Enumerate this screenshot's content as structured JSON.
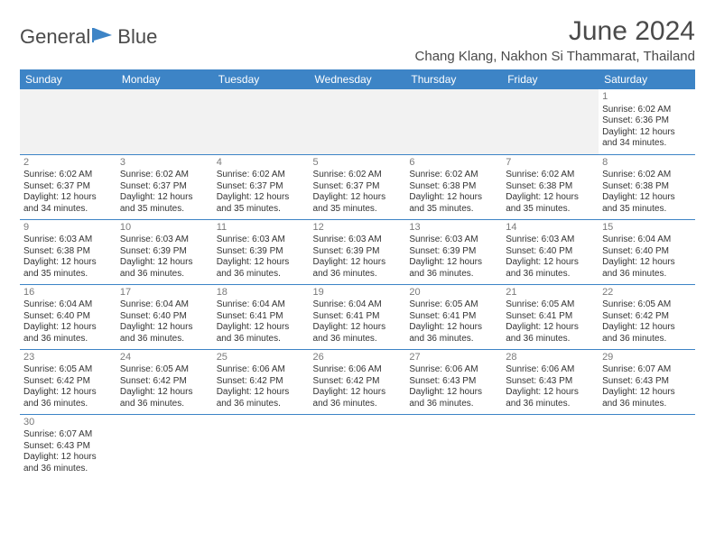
{
  "logo": {
    "text1": "General",
    "text2": "Blue",
    "icon_color": "#3d84c6"
  },
  "title": "June 2024",
  "location": "Chang Klang, Nakhon Si Thammarat, Thailand",
  "header_bg": "#3d84c6",
  "day_headers": [
    "Sunday",
    "Monday",
    "Tuesday",
    "Wednesday",
    "Thursday",
    "Friday",
    "Saturday"
  ],
  "weeks": [
    [
      null,
      null,
      null,
      null,
      null,
      null,
      {
        "n": "1",
        "sr": "6:02 AM",
        "ss": "6:36 PM",
        "dl": "12 hours and 34 minutes."
      }
    ],
    [
      {
        "n": "2",
        "sr": "6:02 AM",
        "ss": "6:37 PM",
        "dl": "12 hours and 34 minutes."
      },
      {
        "n": "3",
        "sr": "6:02 AM",
        "ss": "6:37 PM",
        "dl": "12 hours and 35 minutes."
      },
      {
        "n": "4",
        "sr": "6:02 AM",
        "ss": "6:37 PM",
        "dl": "12 hours and 35 minutes."
      },
      {
        "n": "5",
        "sr": "6:02 AM",
        "ss": "6:37 PM",
        "dl": "12 hours and 35 minutes."
      },
      {
        "n": "6",
        "sr": "6:02 AM",
        "ss": "6:38 PM",
        "dl": "12 hours and 35 minutes."
      },
      {
        "n": "7",
        "sr": "6:02 AM",
        "ss": "6:38 PM",
        "dl": "12 hours and 35 minutes."
      },
      {
        "n": "8",
        "sr": "6:02 AM",
        "ss": "6:38 PM",
        "dl": "12 hours and 35 minutes."
      }
    ],
    [
      {
        "n": "9",
        "sr": "6:03 AM",
        "ss": "6:38 PM",
        "dl": "12 hours and 35 minutes."
      },
      {
        "n": "10",
        "sr": "6:03 AM",
        "ss": "6:39 PM",
        "dl": "12 hours and 36 minutes."
      },
      {
        "n": "11",
        "sr": "6:03 AM",
        "ss": "6:39 PM",
        "dl": "12 hours and 36 minutes."
      },
      {
        "n": "12",
        "sr": "6:03 AM",
        "ss": "6:39 PM",
        "dl": "12 hours and 36 minutes."
      },
      {
        "n": "13",
        "sr": "6:03 AM",
        "ss": "6:39 PM",
        "dl": "12 hours and 36 minutes."
      },
      {
        "n": "14",
        "sr": "6:03 AM",
        "ss": "6:40 PM",
        "dl": "12 hours and 36 minutes."
      },
      {
        "n": "15",
        "sr": "6:04 AM",
        "ss": "6:40 PM",
        "dl": "12 hours and 36 minutes."
      }
    ],
    [
      {
        "n": "16",
        "sr": "6:04 AM",
        "ss": "6:40 PM",
        "dl": "12 hours and 36 minutes."
      },
      {
        "n": "17",
        "sr": "6:04 AM",
        "ss": "6:40 PM",
        "dl": "12 hours and 36 minutes."
      },
      {
        "n": "18",
        "sr": "6:04 AM",
        "ss": "6:41 PM",
        "dl": "12 hours and 36 minutes."
      },
      {
        "n": "19",
        "sr": "6:04 AM",
        "ss": "6:41 PM",
        "dl": "12 hours and 36 minutes."
      },
      {
        "n": "20",
        "sr": "6:05 AM",
        "ss": "6:41 PM",
        "dl": "12 hours and 36 minutes."
      },
      {
        "n": "21",
        "sr": "6:05 AM",
        "ss": "6:41 PM",
        "dl": "12 hours and 36 minutes."
      },
      {
        "n": "22",
        "sr": "6:05 AM",
        "ss": "6:42 PM",
        "dl": "12 hours and 36 minutes."
      }
    ],
    [
      {
        "n": "23",
        "sr": "6:05 AM",
        "ss": "6:42 PM",
        "dl": "12 hours and 36 minutes."
      },
      {
        "n": "24",
        "sr": "6:05 AM",
        "ss": "6:42 PM",
        "dl": "12 hours and 36 minutes."
      },
      {
        "n": "25",
        "sr": "6:06 AM",
        "ss": "6:42 PM",
        "dl": "12 hours and 36 minutes."
      },
      {
        "n": "26",
        "sr": "6:06 AM",
        "ss": "6:42 PM",
        "dl": "12 hours and 36 minutes."
      },
      {
        "n": "27",
        "sr": "6:06 AM",
        "ss": "6:43 PM",
        "dl": "12 hours and 36 minutes."
      },
      {
        "n": "28",
        "sr": "6:06 AM",
        "ss": "6:43 PM",
        "dl": "12 hours and 36 minutes."
      },
      {
        "n": "29",
        "sr": "6:07 AM",
        "ss": "6:43 PM",
        "dl": "12 hours and 36 minutes."
      }
    ],
    [
      {
        "n": "30",
        "sr": "6:07 AM",
        "ss": "6:43 PM",
        "dl": "12 hours and 36 minutes."
      },
      null,
      null,
      null,
      null,
      null,
      null
    ]
  ],
  "labels": {
    "sunrise": "Sunrise:",
    "sunset": "Sunset:",
    "daylight": "Daylight:"
  }
}
